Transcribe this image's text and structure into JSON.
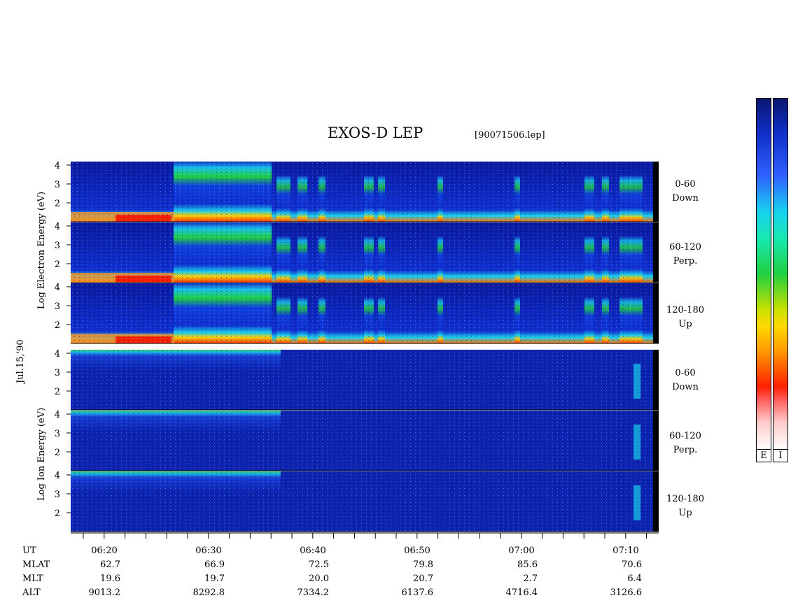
{
  "title": "EXOS-D LEP",
  "file": "[90071506.lep]",
  "date_label": "Jul.15,'90",
  "electron_ylabel": "Log Electron Energy (eV)",
  "ion_ylabel": "Log Ion Energy (eV)",
  "panel_labels": [
    {
      "top": "0-60",
      "bottom": "Down"
    },
    {
      "top": "60-120",
      "bottom": "Perp."
    },
    {
      "top": "120-180",
      "bottom": "Up"
    },
    {
      "top": "0-60",
      "bottom": "Down"
    },
    {
      "top": "60-120",
      "bottom": "Perp."
    },
    {
      "top": "120-180",
      "bottom": "Up"
    }
  ],
  "colorbar_labels": [
    "E",
    "I"
  ],
  "colors": {
    "low": "#0a1aa0",
    "mid": "#20d040",
    "high": "#ff2000"
  },
  "chart_data": {
    "type": "heatmap",
    "title": "EXOS-D LEP",
    "x_unit": "UT",
    "y_ticks": [
      "4",
      "3",
      "2"
    ],
    "panels": [
      {
        "species": "Electron",
        "pitch_angle": "0-60 Down",
        "y_range": [
          1,
          4
        ]
      },
      {
        "species": "Electron",
        "pitch_angle": "60-120 Perp.",
        "y_range": [
          1,
          4
        ]
      },
      {
        "species": "Electron",
        "pitch_angle": "120-180 Up",
        "y_range": [
          1,
          4
        ]
      },
      {
        "species": "Ion",
        "pitch_angle": "0-60 Down",
        "y_range": [
          1,
          4
        ]
      },
      {
        "species": "Ion",
        "pitch_angle": "60-120 Perp.",
        "y_range": [
          1,
          4
        ]
      },
      {
        "species": "Ion",
        "pitch_angle": "120-180 Up",
        "y_range": [
          1,
          4
        ]
      }
    ],
    "x_range": [
      "06:15",
      "07:13"
    ],
    "rows": [
      {
        "label": "UT",
        "values": [
          "06:20",
          "06:30",
          "06:40",
          "06:50",
          "07:00",
          "07:10"
        ]
      },
      {
        "label": "MLAT",
        "values": [
          "62.7",
          "66.9",
          "72.5",
          "79.8",
          "85.6",
          "70.6"
        ]
      },
      {
        "label": "MLT",
        "values": [
          "19.6",
          "19.7",
          "20.0",
          "20.7",
          "2.7",
          "6.4"
        ]
      },
      {
        "label": "ALT",
        "values": [
          "9013.2",
          "8292.8",
          "7334.2",
          "6137.6",
          "4716.4",
          "3126.6"
        ]
      }
    ]
  }
}
